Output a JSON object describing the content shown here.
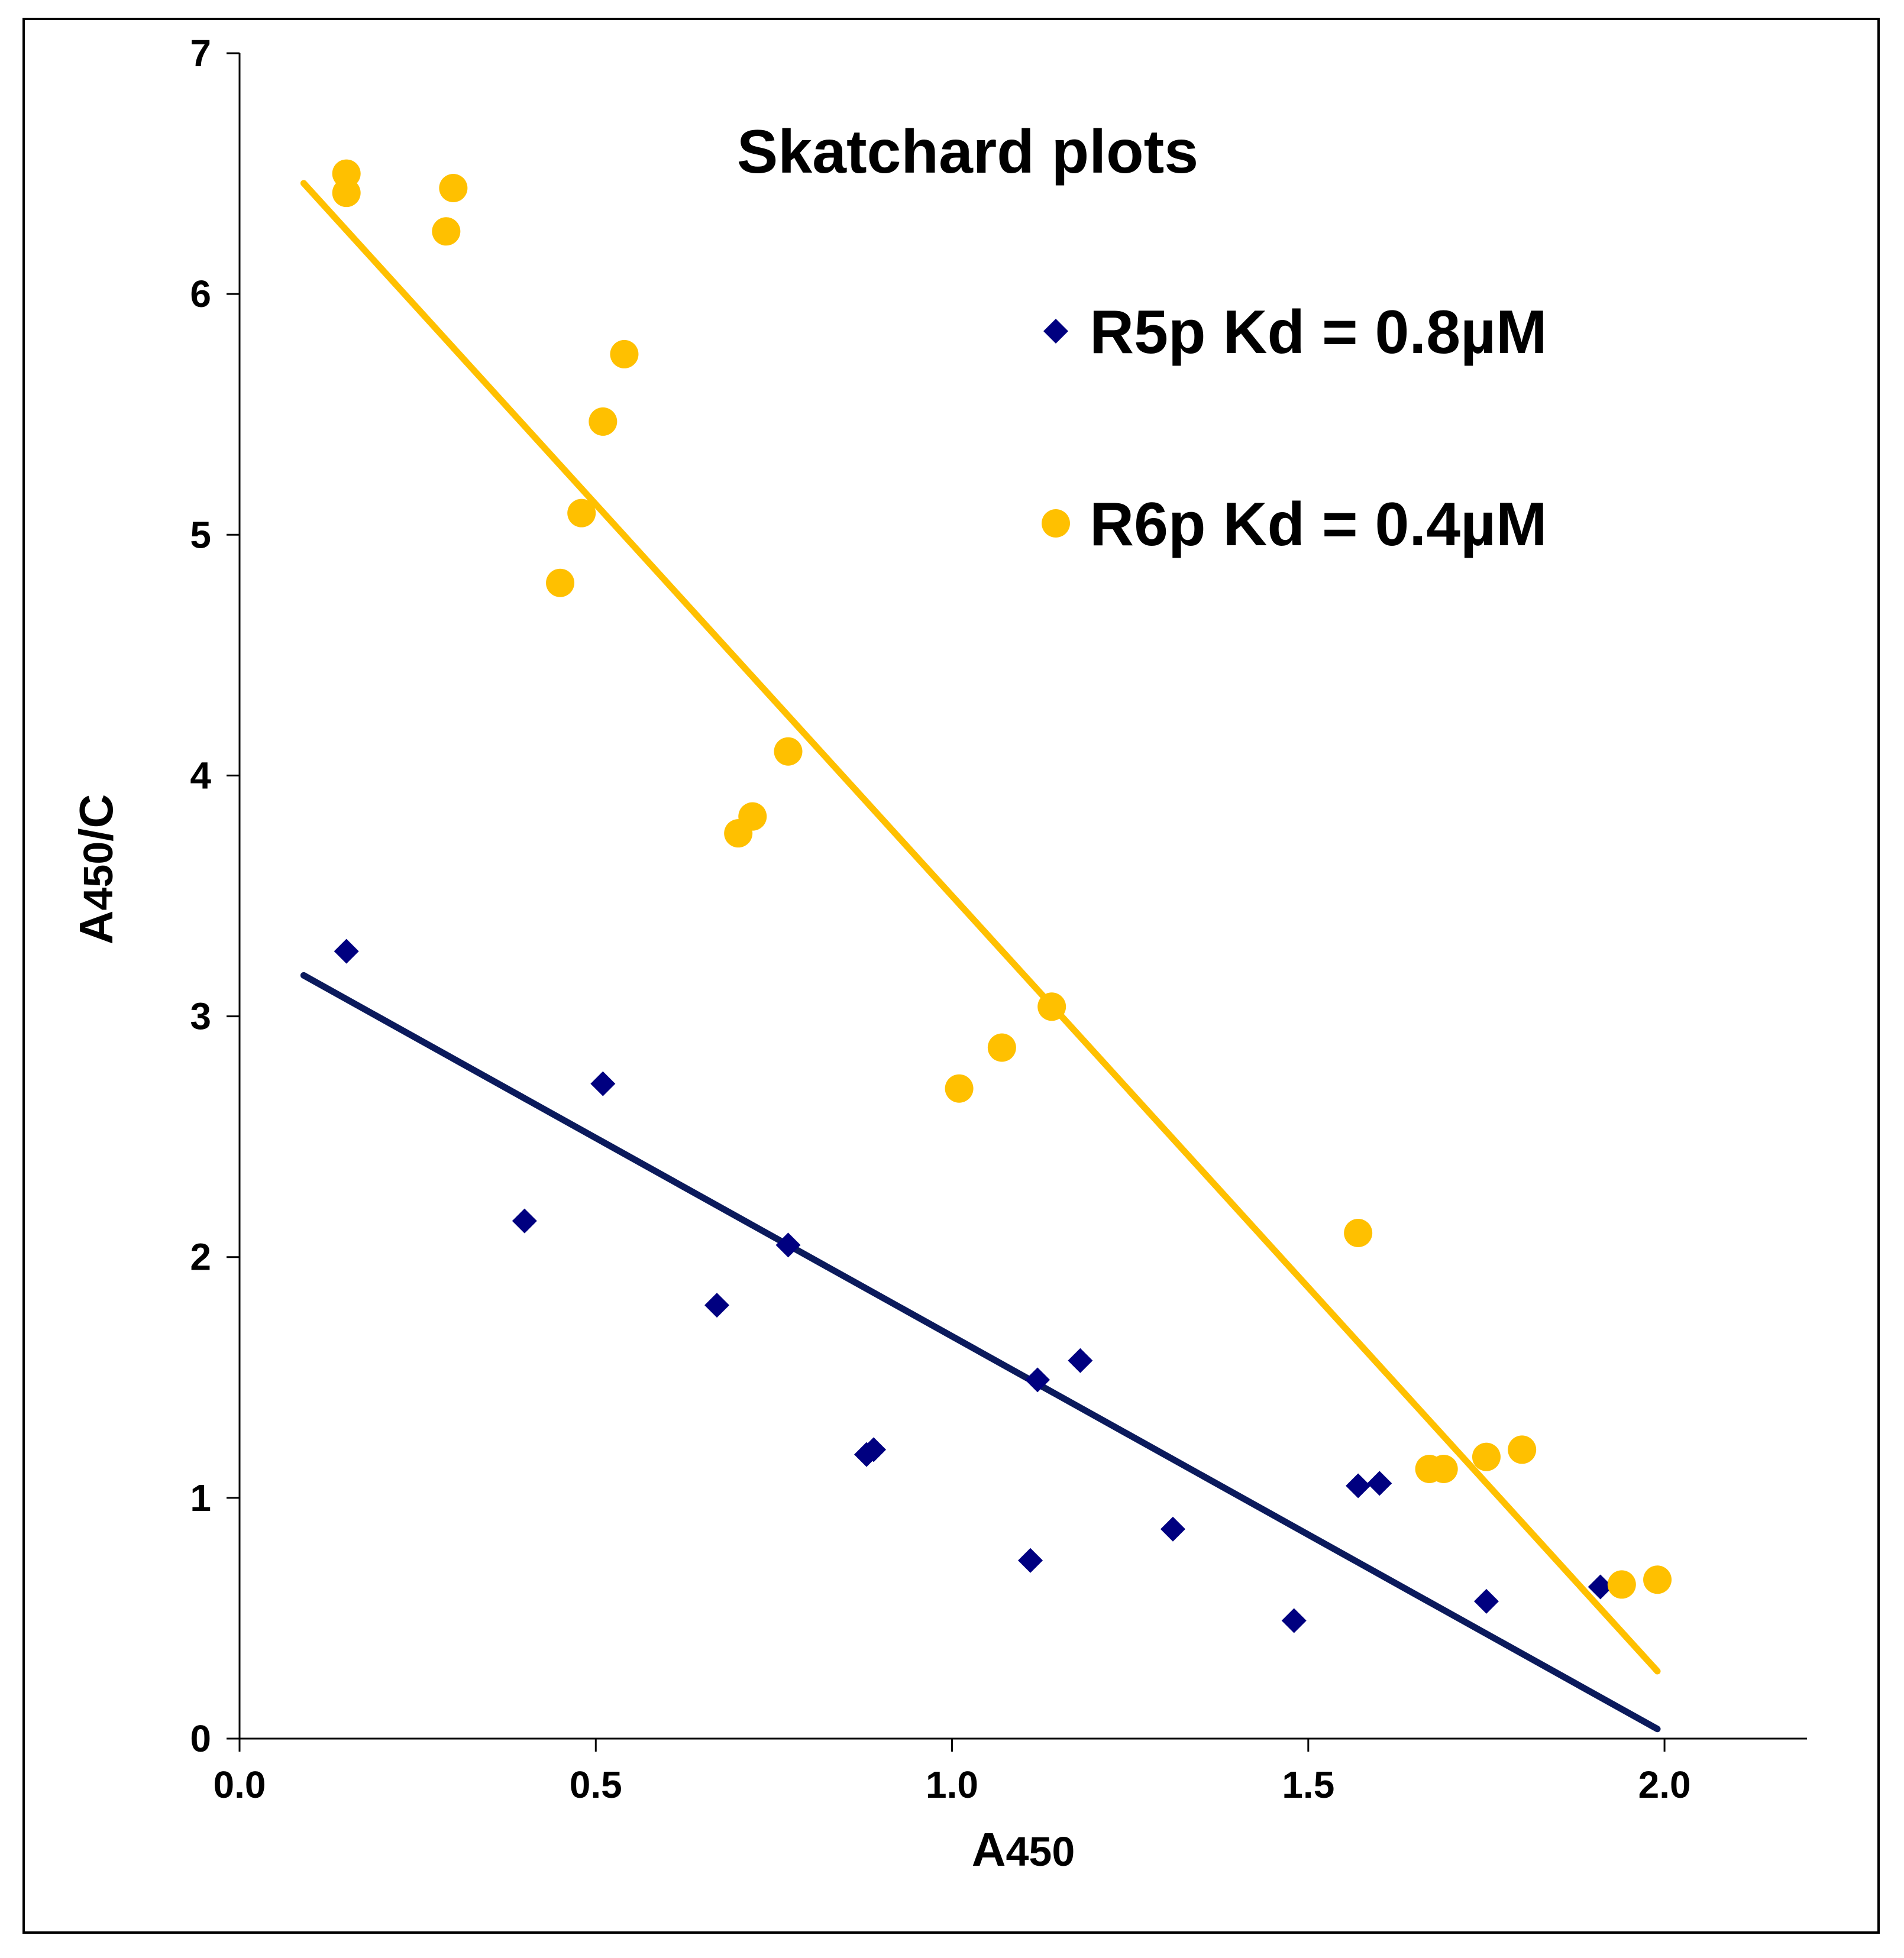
{
  "chart_data": {
    "type": "scatter",
    "title": "Skatchard plots",
    "xlabel": {
      "main": "A",
      "sub": "450"
    },
    "ylabel": {
      "main": "A",
      "sub": "450",
      "suffix": "/C"
    },
    "xlim": [
      0,
      2.2
    ],
    "ylim": [
      0,
      7
    ],
    "x_ticks": [
      0.0,
      0.5,
      1.0,
      1.5,
      2.0
    ],
    "x_tick_labels": [
      "0.0",
      "0.5",
      "1.0",
      "1.5",
      "2.0"
    ],
    "y_ticks": [
      0,
      1,
      2,
      3,
      4,
      5,
      6,
      7
    ],
    "y_tick_labels": [
      "0",
      "1",
      "2",
      "3",
      "4",
      "5",
      "6",
      "7"
    ],
    "legend_position": "top-right",
    "series": [
      {
        "name": "R5p",
        "legend_label": "R5p  Kd = 0.8µM",
        "marker": "diamond",
        "color": "#000080",
        "line_color": "#0b1a5c",
        "points": [
          [
            0.15,
            3.27
          ],
          [
            0.4,
            2.15
          ],
          [
            0.51,
            2.72
          ],
          [
            0.67,
            1.8
          ],
          [
            0.77,
            2.05
          ],
          [
            0.88,
            1.18
          ],
          [
            0.89,
            1.2
          ],
          [
            1.11,
            0.74
          ],
          [
            1.12,
            1.49
          ],
          [
            1.18,
            1.57
          ],
          [
            1.31,
            0.87
          ],
          [
            1.48,
            0.49
          ],
          [
            1.57,
            1.05
          ],
          [
            1.6,
            1.06
          ],
          [
            1.75,
            0.57
          ],
          [
            1.91,
            0.63
          ]
        ],
        "trendline": [
          [
            0.09,
            3.17
          ],
          [
            1.99,
            0.04
          ]
        ]
      },
      {
        "name": "R6p",
        "legend_label": "R6p  Kd = 0.4µM",
        "marker": "circle",
        "color": "#ffc000",
        "line_color": "#ffc000",
        "points": [
          [
            0.15,
            6.5
          ],
          [
            0.15,
            6.42
          ],
          [
            0.29,
            6.26
          ],
          [
            0.3,
            6.44
          ],
          [
            0.45,
            4.8
          ],
          [
            0.48,
            5.09
          ],
          [
            0.51,
            5.47
          ],
          [
            0.54,
            5.75
          ],
          [
            0.7,
            3.76
          ],
          [
            0.72,
            3.83
          ],
          [
            0.77,
            4.1
          ],
          [
            1.01,
            2.7
          ],
          [
            1.07,
            2.87
          ],
          [
            1.14,
            3.04
          ],
          [
            1.57,
            2.1
          ],
          [
            1.67,
            1.12
          ],
          [
            1.69,
            1.12
          ],
          [
            1.75,
            1.17
          ],
          [
            1.8,
            1.2
          ],
          [
            1.94,
            0.64
          ],
          [
            1.99,
            0.66
          ]
        ],
        "trendline": [
          [
            0.09,
            6.46
          ],
          [
            1.99,
            0.28
          ]
        ]
      }
    ]
  }
}
